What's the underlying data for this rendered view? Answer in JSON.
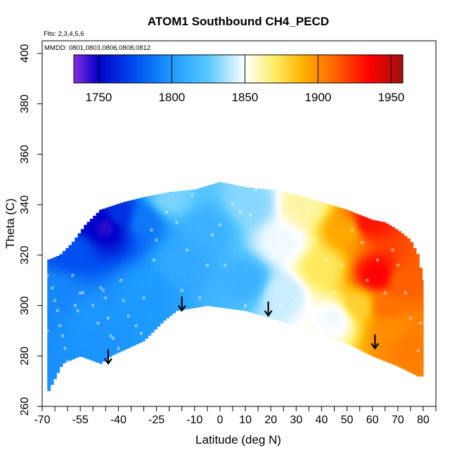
{
  "chart_data": {
    "type": "heatmap",
    "title": "ATOM1 Southbound CH4_PECD",
    "flights_label": "Flts: 2,3,4,5,6",
    "dates_label": "MMDD: 0801,0803,0806,0808,0812",
    "xlabel": "Latitude (deg N)",
    "ylabel": "Theta (C)",
    "xlim": [
      -70,
      85
    ],
    "ylim": [
      260,
      405
    ],
    "x_ticks": [
      -70,
      -55,
      -40,
      -25,
      -10,
      0,
      10,
      20,
      30,
      40,
      50,
      60,
      70,
      80
    ],
    "x_minor_ticks": [
      -65,
      -60,
      -50,
      -45,
      -35,
      -30,
      -20,
      -15,
      -5,
      5,
      15,
      25,
      35,
      45,
      55,
      65,
      75,
      85
    ],
    "y_ticks": [
      260,
      280,
      300,
      320,
      340,
      360,
      380,
      400
    ],
    "colorbar": {
      "min": 1733,
      "max": 1958,
      "ticks": [
        1750,
        1800,
        1850,
        1900,
        1950
      ],
      "stops": [
        {
          "value": 1733,
          "color": "#8a2be2"
        },
        {
          "value": 1750,
          "color": "#0000c8"
        },
        {
          "value": 1775,
          "color": "#0050f0"
        },
        {
          "value": 1800,
          "color": "#1e9bff"
        },
        {
          "value": 1825,
          "color": "#5ac8ff"
        },
        {
          "value": 1850,
          "color": "#ffffff"
        },
        {
          "value": 1870,
          "color": "#ffee66"
        },
        {
          "value": 1890,
          "color": "#ffb000"
        },
        {
          "value": 1910,
          "color": "#ff6a00"
        },
        {
          "value": 1935,
          "color": "#ff0000"
        },
        {
          "value": 1958,
          "color": "#a01010"
        }
      ]
    },
    "domain_bottom": [
      [
        -68,
        265
      ],
      [
        -62,
        277
      ],
      [
        -55,
        280
      ],
      [
        -47,
        277
      ],
      [
        -43,
        280
      ],
      [
        -30,
        286
      ],
      [
        -22,
        294
      ],
      [
        -17,
        298
      ],
      [
        -5,
        300
      ],
      [
        10,
        298
      ],
      [
        20,
        295
      ],
      [
        30,
        292
      ],
      [
        40,
        288
      ],
      [
        50,
        285
      ],
      [
        60,
        280
      ],
      [
        70,
        276
      ],
      [
        78,
        272
      ]
    ],
    "domain_top": [
      [
        -68,
        318
      ],
      [
        -63,
        320
      ],
      [
        -58,
        325
      ],
      [
        -53,
        332
      ],
      [
        -47,
        338
      ],
      [
        -38,
        341
      ],
      [
        -30,
        343
      ],
      [
        -20,
        345
      ],
      [
        -10,
        346
      ],
      [
        0,
        349
      ],
      [
        10,
        347
      ],
      [
        20,
        346
      ],
      [
        30,
        344
      ],
      [
        40,
        341
      ],
      [
        50,
        338
      ],
      [
        55,
        336
      ],
      [
        60,
        334
      ],
      [
        65,
        333
      ],
      [
        70,
        330
      ],
      [
        75,
        326
      ],
      [
        78,
        320
      ],
      [
        80,
        310
      ]
    ],
    "field_anchors": [
      {
        "lat": -50,
        "theta": 335,
        "value": 1752
      },
      {
        "lat": -45,
        "theta": 332,
        "value": 1745
      },
      {
        "lat": -58,
        "theta": 322,
        "value": 1775
      },
      {
        "lat": -40,
        "theta": 336,
        "value": 1765
      },
      {
        "lat": -30,
        "theta": 334,
        "value": 1788
      },
      {
        "lat": -65,
        "theta": 305,
        "value": 1793
      },
      {
        "lat": -50,
        "theta": 295,
        "value": 1798
      },
      {
        "lat": -30,
        "theta": 305,
        "value": 1800
      },
      {
        "lat": -15,
        "theta": 318,
        "value": 1808
      },
      {
        "lat": -20,
        "theta": 342,
        "value": 1830
      },
      {
        "lat": -5,
        "theta": 330,
        "value": 1812
      },
      {
        "lat": 10,
        "theta": 310,
        "value": 1812
      },
      {
        "lat": 12,
        "theta": 340,
        "value": 1832
      },
      {
        "lat": 25,
        "theta": 325,
        "value": 1848
      },
      {
        "lat": 25,
        "theta": 305,
        "value": 1842
      },
      {
        "lat": 33,
        "theta": 340,
        "value": 1862
      },
      {
        "lat": 40,
        "theta": 315,
        "value": 1872
      },
      {
        "lat": 45,
        "theta": 295,
        "value": 1848
      },
      {
        "lat": 50,
        "theta": 330,
        "value": 1892
      },
      {
        "lat": 58,
        "theta": 333,
        "value": 1930
      },
      {
        "lat": 62,
        "theta": 312,
        "value": 1935
      },
      {
        "lat": 65,
        "theta": 300,
        "value": 1908
      },
      {
        "lat": 55,
        "theta": 300,
        "value": 1880
      },
      {
        "lat": 72,
        "theta": 310,
        "value": 1912
      },
      {
        "lat": 75,
        "theta": 285,
        "value": 1905
      },
      {
        "lat": 68,
        "theta": 290,
        "value": 1900
      }
    ],
    "sample_points": [
      [
        -68,
        312
      ],
      [
        -66,
        307
      ],
      [
        -65,
        302
      ],
      [
        -64,
        298
      ],
      [
        -63,
        292
      ],
      [
        -62,
        288
      ],
      [
        -61,
        283
      ],
      [
        -60,
        278
      ],
      [
        -68,
        290
      ],
      [
        -66,
        268
      ],
      [
        -58,
        312
      ],
      [
        -57,
        300
      ],
      [
        -56,
        298
      ],
      [
        -55,
        305
      ],
      [
        -54,
        305
      ],
      [
        -50,
        300
      ],
      [
        -48,
        293
      ],
      [
        -47,
        307
      ],
      [
        -46,
        306
      ],
      [
        -45,
        303
      ],
      [
        -44,
        295
      ],
      [
        -43,
        288
      ],
      [
        -42,
        287
      ],
      [
        -40,
        283
      ],
      [
        -38,
        302
      ],
      [
        -36,
        296
      ],
      [
        -33,
        292
      ],
      [
        -31,
        289
      ],
      [
        -30,
        303
      ],
      [
        -27,
        330
      ],
      [
        -25,
        326
      ],
      [
        -21,
        337
      ],
      [
        -17,
        333
      ],
      [
        -15,
        306
      ],
      [
        -13,
        322
      ],
      [
        -11,
        344
      ],
      [
        -5,
        316
      ],
      [
        -3,
        328
      ],
      [
        0,
        332
      ],
      [
        2,
        316
      ],
      [
        5,
        340
      ],
      [
        8,
        337
      ],
      [
        12,
        336
      ],
      [
        14,
        346
      ],
      [
        18,
        332
      ],
      [
        22,
        339
      ],
      [
        28,
        336
      ],
      [
        30,
        302
      ],
      [
        33,
        322
      ],
      [
        38,
        326
      ],
      [
        42,
        318
      ],
      [
        45,
        305
      ],
      [
        48,
        316
      ],
      [
        52,
        330
      ],
      [
        56,
        325
      ],
      [
        58,
        310
      ],
      [
        62,
        318
      ],
      [
        65,
        305
      ],
      [
        68,
        322
      ],
      [
        70,
        316
      ],
      [
        73,
        305
      ],
      [
        75,
        295
      ],
      [
        78,
        282
      ],
      [
        79,
        293
      ],
      [
        -39,
        310
      ],
      [
        -26,
        318
      ],
      [
        -8,
        303
      ],
      [
        10,
        300
      ],
      [
        24,
        300
      ],
      [
        36,
        298
      ]
    ],
    "arrows": [
      {
        "lat": -44,
        "theta": 277
      },
      {
        "lat": -15,
        "theta": 298
      },
      {
        "lat": 19,
        "theta": 296
      },
      {
        "lat": 61,
        "theta": 283
      }
    ],
    "colors": {
      "axis": "#000000",
      "background": "#ffffff",
      "marker": "#ffffff"
    }
  }
}
